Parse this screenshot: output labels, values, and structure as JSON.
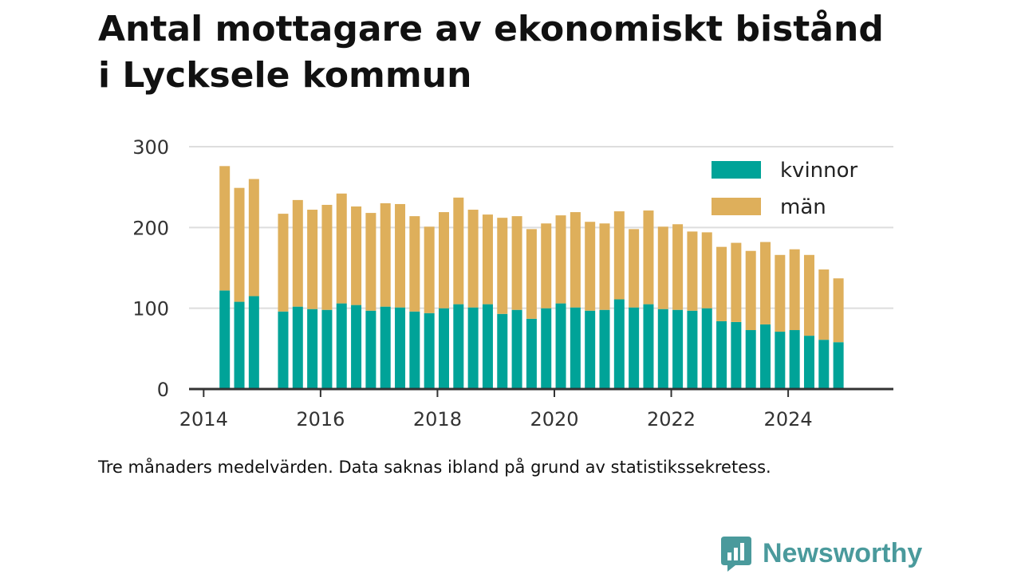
{
  "title_line1": "Antal mottagare av ekonomiskt bistånd",
  "title_line2": "i Lycksele kommun",
  "note": "Tre månaders medelvärden. Data saknas ibland på grund av statistikssekretess.",
  "brand": "Newsworthy",
  "colors": {
    "kvinnor": "#00a398",
    "man": "#deaf5b",
    "axis": "#333333",
    "grid": "#dddddd",
    "brand": "#4a9a9c"
  },
  "icons": {
    "logo": "newsworthy-logo-icon"
  },
  "chart_data": {
    "type": "bar",
    "stacked": true,
    "x_unit": "year",
    "xlim": [
      2013.75,
      2025.8
    ],
    "ylim": [
      0,
      300
    ],
    "y_ticks": [
      0,
      100,
      200,
      300
    ],
    "y_tick_labels": [
      "0",
      "100",
      "200",
      "300"
    ],
    "x_ticks": [
      2014,
      2016,
      2018,
      2020,
      2022,
      2024
    ],
    "x_tick_labels": [
      "2014",
      "2016",
      "2018",
      "2020",
      "2022",
      "2024"
    ],
    "grid": true,
    "legend_position": "top-right",
    "x": [
      2014.36,
      2014.61,
      2014.86,
      2015.36,
      2015.61,
      2015.86,
      2016.11,
      2016.36,
      2016.61,
      2016.86,
      2017.11,
      2017.36,
      2017.61,
      2017.86,
      2018.11,
      2018.36,
      2018.61,
      2018.86,
      2019.11,
      2019.36,
      2019.61,
      2019.86,
      2020.11,
      2020.36,
      2020.61,
      2020.86,
      2021.11,
      2021.36,
      2021.61,
      2021.86,
      2022.11,
      2022.36,
      2022.61,
      2022.86,
      2023.11,
      2023.36,
      2023.61,
      2023.86,
      2024.11,
      2024.36,
      2024.61,
      2024.86
    ],
    "series": [
      {
        "name": "kvinnor",
        "values": [
          122,
          108,
          115,
          96,
          102,
          99,
          98,
          106,
          104,
          97,
          102,
          101,
          96,
          94,
          100,
          105,
          101,
          105,
          93,
          98,
          87,
          100,
          106,
          101,
          97,
          98,
          111,
          101,
          105,
          99,
          98,
          97,
          100,
          84,
          83,
          73,
          80,
          71,
          73,
          66,
          61,
          58
        ]
      },
      {
        "name": "män",
        "values": [
          154,
          141,
          145,
          121,
          132,
          123,
          130,
          136,
          122,
          121,
          128,
          128,
          118,
          107,
          119,
          132,
          121,
          111,
          119,
          116,
          111,
          105,
          109,
          118,
          110,
          107,
          109,
          97,
          116,
          102,
          106,
          98,
          94,
          92,
          98,
          98,
          102,
          95,
          100,
          100,
          87,
          79
        ]
      }
    ]
  }
}
